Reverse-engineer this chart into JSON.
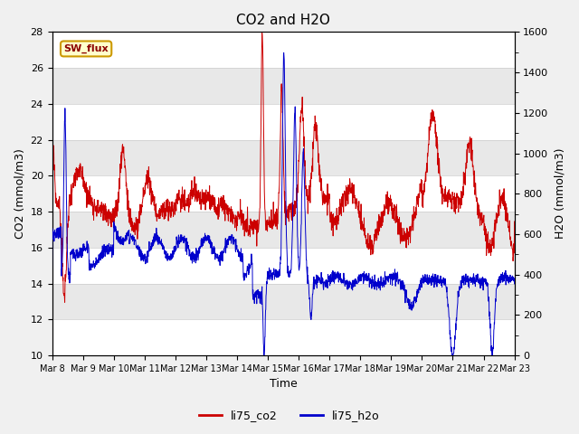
{
  "title": "CO2 and H2O",
  "xlabel": "Time",
  "ylabel_left": "CO2 (mmol/m3)",
  "ylabel_right": "H2O (mmol/m3)",
  "annotation_text": "SW_flux",
  "annotation_bg": "#ffffcc",
  "annotation_border": "#cc9900",
  "left_ylim": [
    10,
    28
  ],
  "right_ylim": [
    0,
    1600
  ],
  "left_yticks": [
    10,
    12,
    14,
    16,
    18,
    20,
    22,
    24,
    26,
    28
  ],
  "right_yticks": [
    0,
    200,
    400,
    600,
    800,
    1000,
    1200,
    1400,
    1600
  ],
  "co2_color": "#cc0000",
  "h2o_color": "#0000cc",
  "legend_co2": "li75_co2",
  "legend_h2o": "li75_h2o",
  "plot_bg": "#f8f8f8",
  "band_colors": [
    "#ffffff",
    "#e8e8e8"
  ],
  "title_fontsize": 11,
  "axis_fontsize": 9,
  "tick_fontsize": 8,
  "legend_fontsize": 9,
  "num_points": 2000
}
